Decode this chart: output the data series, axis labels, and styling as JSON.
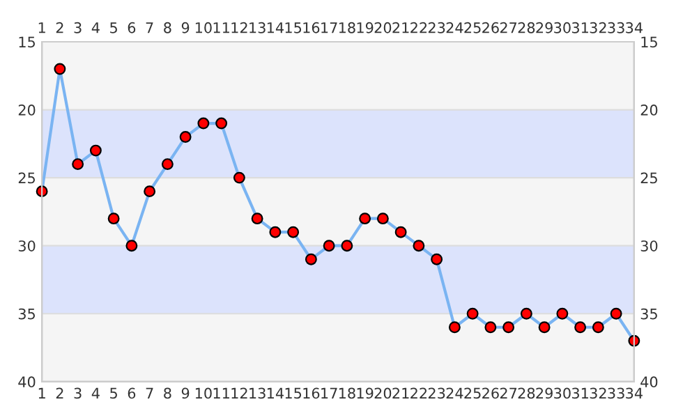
{
  "chart_data": {
    "type": "line",
    "categories": [
      "1",
      "2",
      "3",
      "4",
      "5",
      "6",
      "7",
      "8",
      "9",
      "10",
      "11",
      "12",
      "13",
      "14",
      "15",
      "16",
      "17",
      "18",
      "19",
      "20",
      "21",
      "22",
      "23",
      "24",
      "25",
      "26",
      "27",
      "28",
      "29",
      "30",
      "31",
      "32",
      "33",
      "34"
    ],
    "series": [
      {
        "color": "#7ab4f2",
        "colors": [
          "#ff0000",
          "#ff0000",
          "#ff0000",
          "#ff0000",
          "#ff0000",
          "#ff0000",
          "#ff0000",
          "#ff0000",
          "#ff0000",
          "#ff0000",
          "#ff0000",
          "#ff0000",
          "#ff0000",
          "#ff0000",
          "#ff0000",
          "#ff0000",
          "#ff0000",
          "#ff0000",
          "#ff0000",
          "#ff0000",
          "#ff0000",
          "#ff0000",
          "#ff0000",
          "#ff0000",
          "#ff0000",
          "#ff0000",
          "#ff0000",
          "#ff0000",
          "#ff0000",
          "#ff0000",
          "#ff0000",
          "#ff0000",
          "#ff0000",
          "#ff0000"
        ],
        "values": [
          26,
          17,
          24,
          23,
          28,
          30,
          26,
          24,
          22,
          21,
          21,
          25,
          28,
          29,
          29,
          31,
          30,
          30,
          28,
          28,
          29,
          30,
          31,
          36,
          35,
          36,
          36,
          35,
          36,
          35,
          36,
          36,
          35,
          37
        ]
      }
    ],
    "ylim": [
      40,
      15
    ],
    "yticks": [
      15,
      20,
      25,
      30,
      35,
      40
    ],
    "y2lim": [
      40,
      15
    ],
    "y2ticks": [
      15,
      20,
      25,
      30,
      35,
      40
    ],
    "bands": [
      {
        "axis": "y",
        "from": 15,
        "to": 20,
        "color": "#f5f5f5"
      },
      {
        "axis": "y",
        "from": 20,
        "to": 25,
        "color": "#dce3fc"
      },
      {
        "axis": "y",
        "from": 25,
        "to": 30,
        "color": "#f5f5f5"
      },
      {
        "axis": "y",
        "from": 30,
        "to": 35,
        "color": "#dce3fc"
      },
      {
        "axis": "y",
        "from": 35,
        "to": 40,
        "color": "#f5f5f5"
      }
    ],
    "grid": "y",
    "marker": "circle",
    "line_style": "solid"
  }
}
